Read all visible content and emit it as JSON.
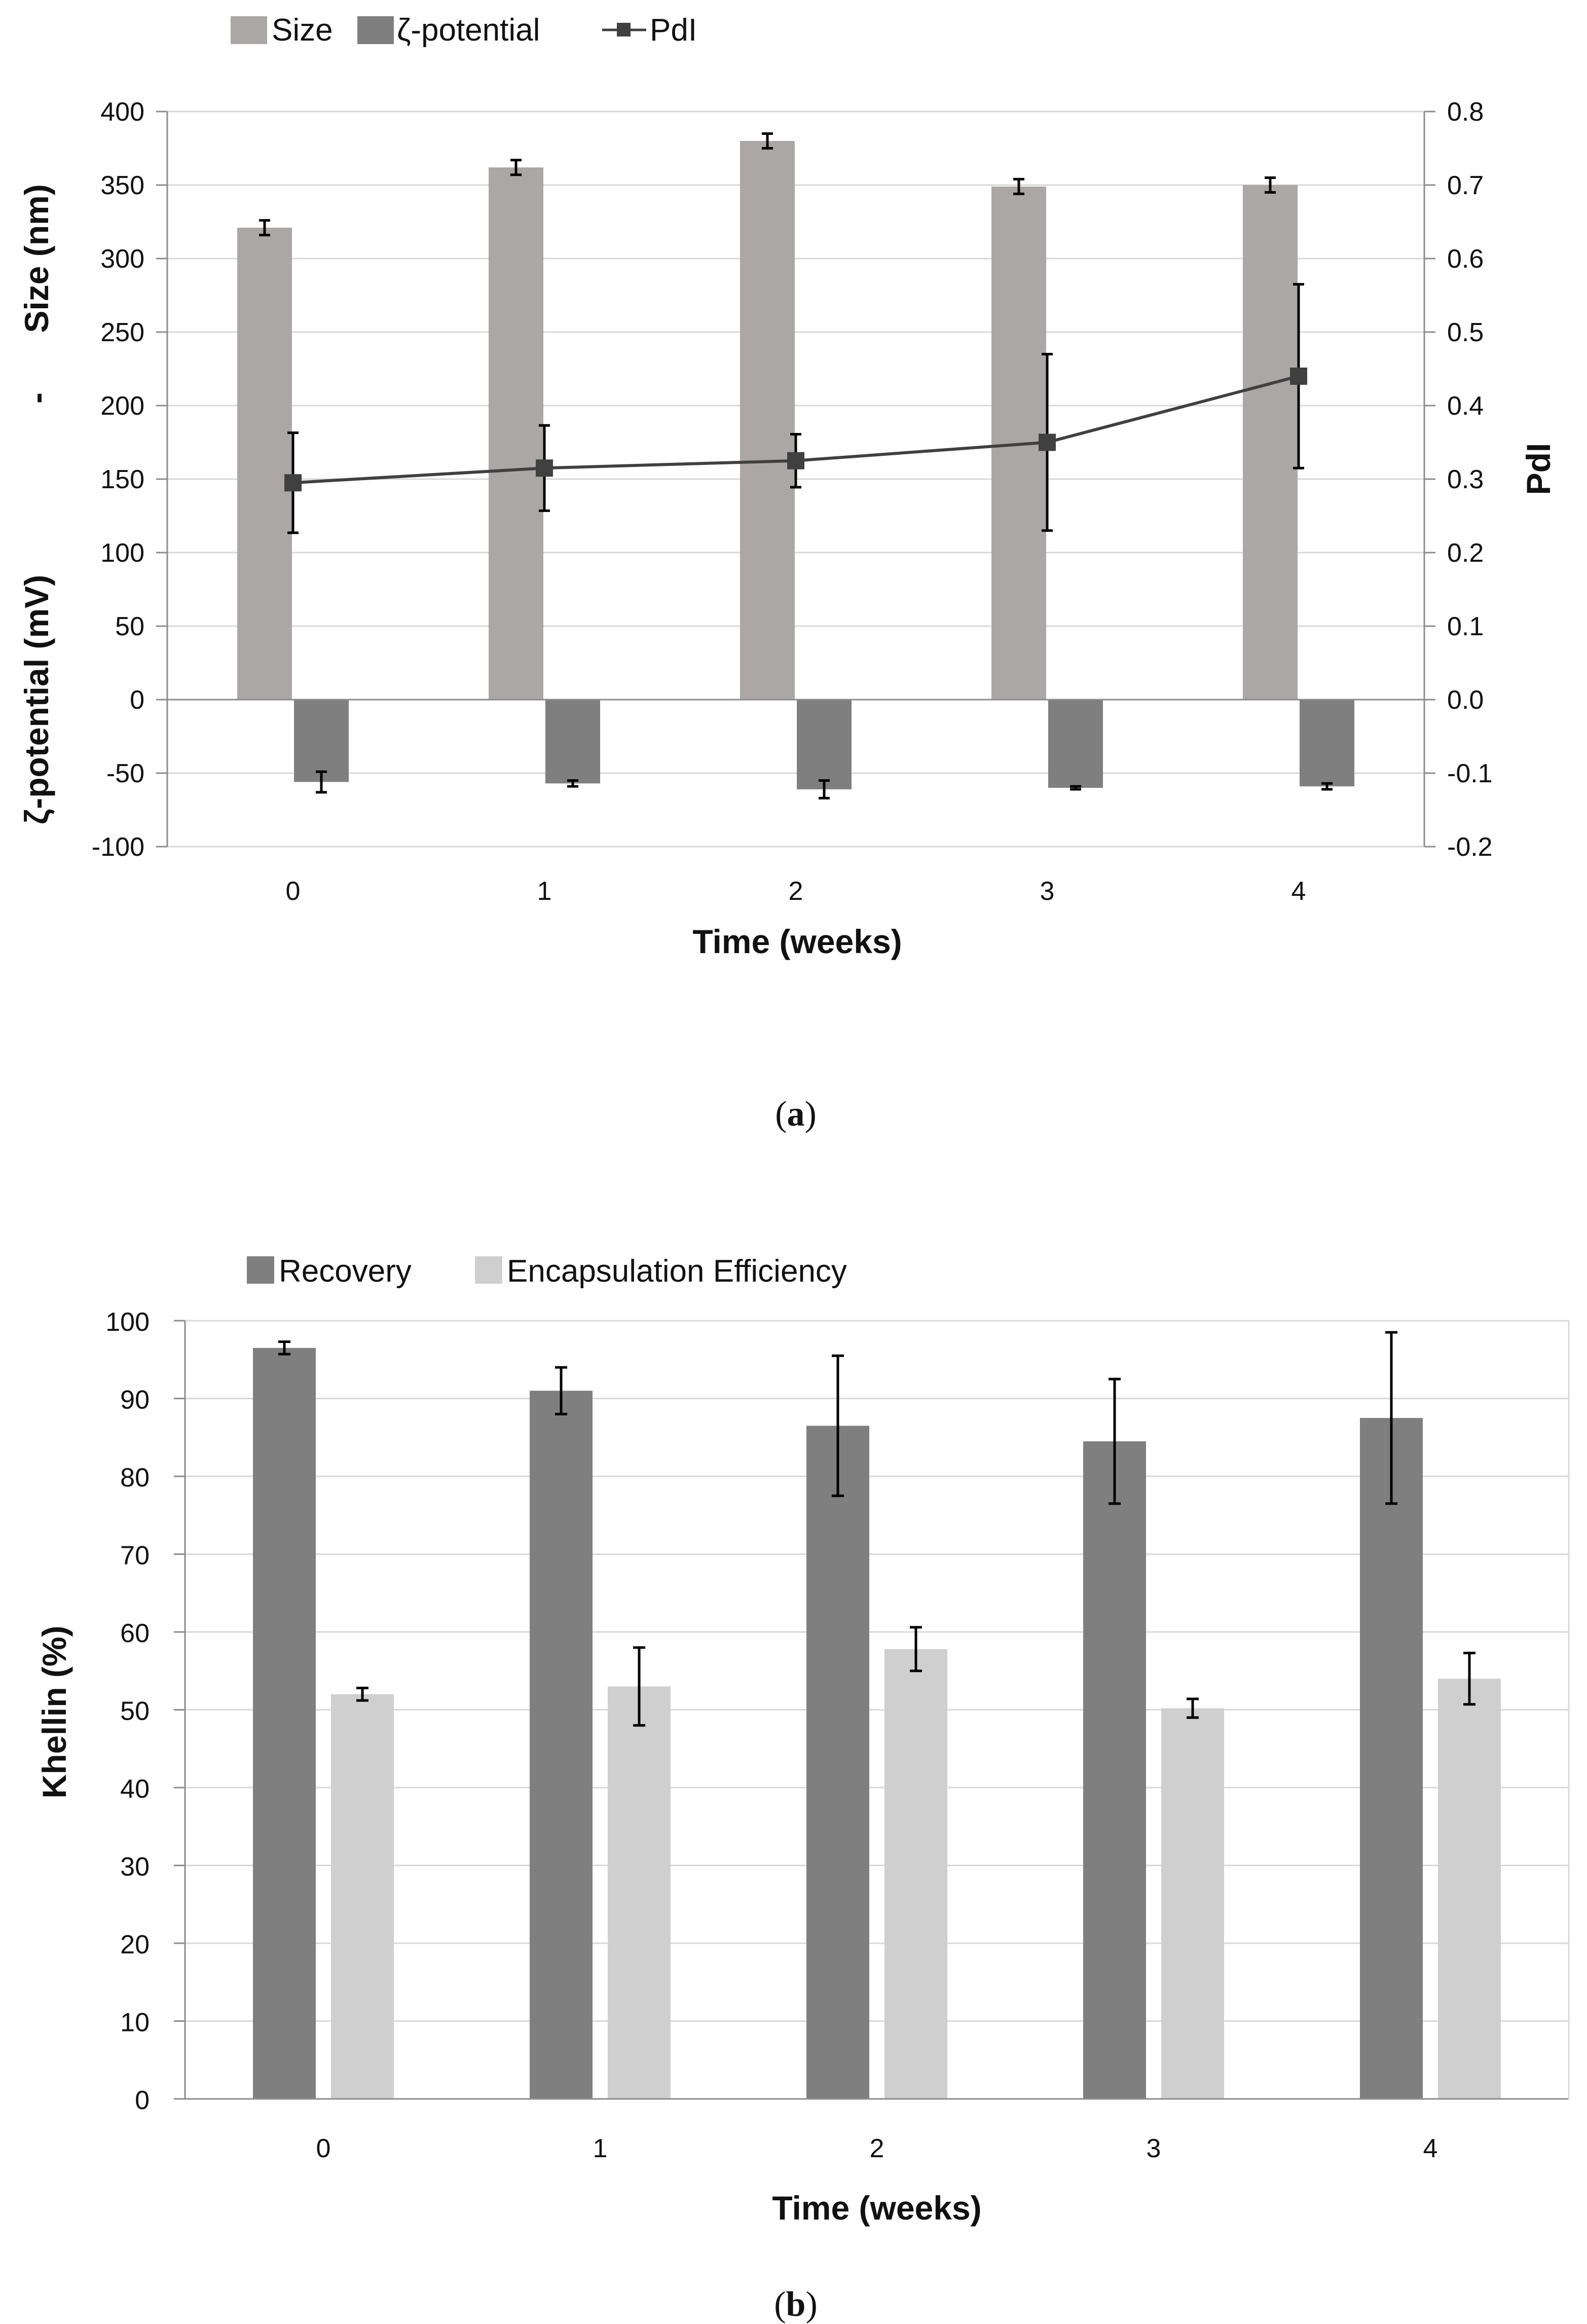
{
  "chart_data": [
    {
      "panel": "a",
      "type": "bar",
      "caption": {
        "open": "(",
        "letter": "a",
        "close": ")"
      },
      "categories": [
        "0",
        "1",
        "2",
        "3",
        "4"
      ],
      "xlabel": "Time (weeks)",
      "ylabel_left": [
        "ζ-potential (mV)",
        "-",
        "Size (nm)"
      ],
      "ylabel_right": "PdI",
      "ylim_left": [
        -100,
        400
      ],
      "ylim_right": [
        -0.2,
        0.8
      ],
      "yticks_left": [
        "400",
        "350",
        "300",
        "250",
        "200",
        "150",
        "100",
        "50",
        "0",
        "-50",
        "-100"
      ],
      "yticks_right": [
        "0.8",
        "0.7",
        "0.6",
        "0.5",
        "0.4",
        "0.3",
        "0.2",
        "0.1",
        "0.0",
        "-0.1",
        "-0.2"
      ],
      "grid": true,
      "legend_position": "top-left",
      "series": [
        {
          "name": "Size",
          "kind": "bar",
          "axis": "left",
          "color": "#aba7a6",
          "values": [
            321,
            362,
            380,
            349,
            350
          ],
          "errors": [
            5,
            5,
            5,
            5,
            5
          ]
        },
        {
          "name": "ζ-potential",
          "kind": "bar",
          "axis": "left",
          "color": "#7f7f7f",
          "values": [
            -56,
            -57,
            -61,
            -60,
            -59
          ],
          "errors": [
            7,
            2,
            6,
            1,
            2
          ]
        },
        {
          "name": "PdI",
          "kind": "line",
          "axis": "right",
          "color": "#404040",
          "values": [
            0.295,
            0.315,
            0.325,
            0.35,
            0.44
          ],
          "errors": [
            0.068,
            0.058,
            0.036,
            0.12,
            0.125
          ]
        }
      ]
    },
    {
      "panel": "b",
      "type": "bar",
      "caption": {
        "open": "(",
        "letter": "b",
        "close": ")"
      },
      "categories": [
        "0",
        "1",
        "2",
        "3",
        "4"
      ],
      "xlabel": "Time (weeks)",
      "ylabel": "Khellin (%)",
      "ylim": [
        0,
        100
      ],
      "yticks": [
        "100",
        "90",
        "80",
        "70",
        "60",
        "50",
        "40",
        "30",
        "20",
        "10",
        "0"
      ],
      "grid": true,
      "legend_position": "top-left",
      "series": [
        {
          "name": "Recovery",
          "color": "#7f7f7f",
          "values": [
            96.5,
            91,
            86.5,
            84.5,
            87.5
          ],
          "errors": [
            0.8,
            3,
            9,
            8,
            11
          ]
        },
        {
          "name": "Encapsulation Efficiency",
          "color": "#d0cfcf",
          "values": [
            52,
            53,
            57.8,
            50.2,
            54
          ],
          "errors": [
            0.8,
            5,
            2.8,
            1.2,
            3.3
          ]
        }
      ]
    }
  ]
}
